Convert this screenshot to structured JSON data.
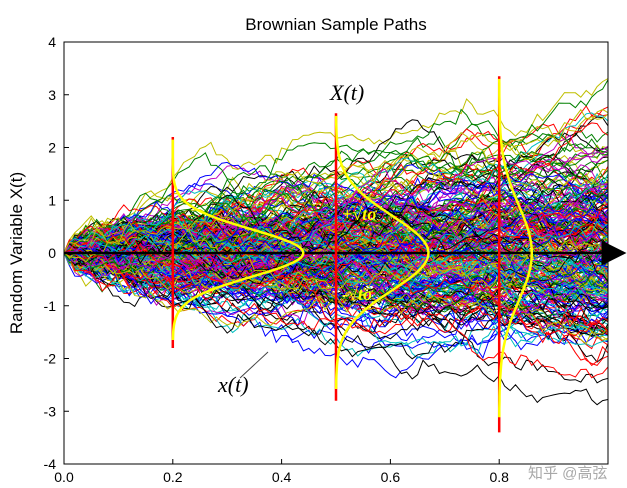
{
  "chart_data": {
    "type": "line",
    "title": "Brownian Sample Paths",
    "xlabel": "",
    "ylabel": "Random Variable X(t)",
    "xlim": [
      0.0,
      1.0
    ],
    "ylim": [
      -4,
      4
    ],
    "xticks": [
      "0.0",
      "0.2",
      "0.4",
      "0.6",
      "0.8"
    ],
    "xtick_values": [
      0.0,
      0.2,
      0.4,
      0.6,
      0.8
    ],
    "yticks": [
      "4",
      "3",
      "2",
      "1",
      "0",
      "-1",
      "-2",
      "-3",
      "-4"
    ],
    "ytick_values": [
      4,
      3,
      2,
      1,
      0,
      -1,
      -2,
      -3,
      -4
    ],
    "grid": false,
    "n_paths": 300,
    "n_steps": 100,
    "sigma": 1.0,
    "time_slices": [
      {
        "t": 0.2,
        "ymin": -1.8,
        "ymax": 2.2,
        "density_peak_offset": 0.24
      },
      {
        "t": 0.5,
        "ymin": -2.8,
        "ymax": 2.65,
        "density_peak_offset": 0.17
      },
      {
        "t": 0.8,
        "ymin": -3.4,
        "ymax": 3.35,
        "density_peak_offset": 0.06
      }
    ],
    "annotations": {
      "process_label": "X(t)",
      "path_label": "x(t)",
      "plus_sigma": "+√tσ",
      "minus_sigma": "-√tσ"
    },
    "colors": {
      "slice_line": "#ff0000",
      "density": "#ffff00",
      "axis_arrow": "#000000"
    }
  },
  "watermark": "知乎 @高弦"
}
